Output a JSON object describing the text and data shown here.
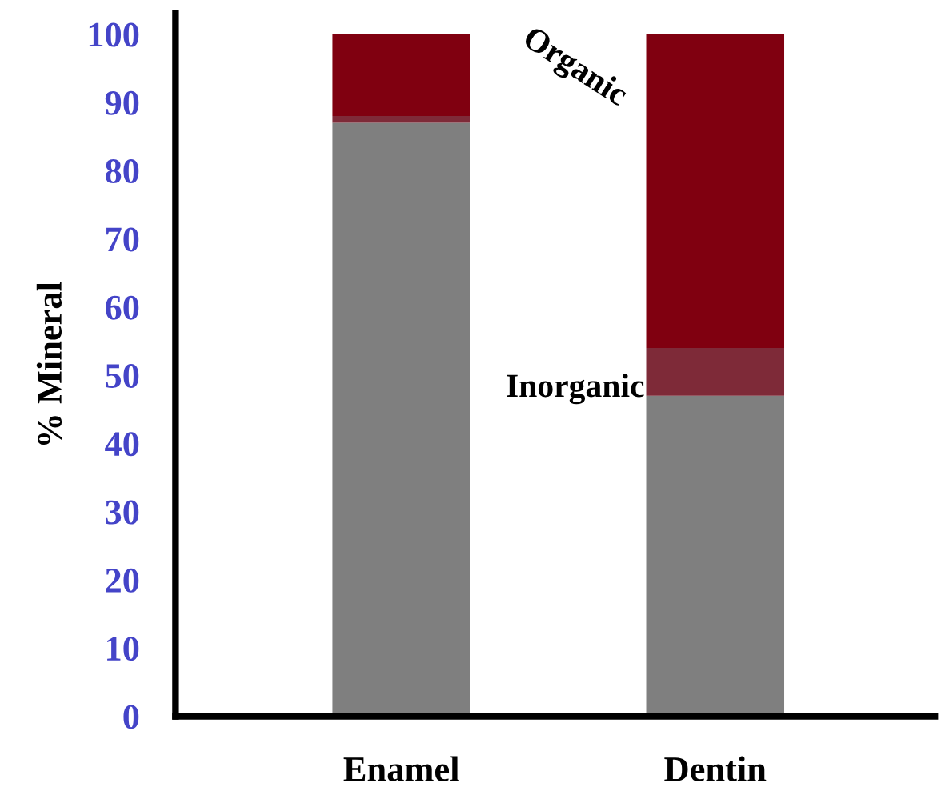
{
  "chart_data": {
    "type": "bar",
    "stacked": true,
    "ylabel": "% Mineral",
    "categories": [
      "Enamel",
      "Dentin"
    ],
    "ylim": [
      0,
      103
    ],
    "yticks": [
      0,
      10,
      20,
      30,
      40,
      50,
      60,
      70,
      80,
      90,
      100
    ],
    "grid": false,
    "legend": false,
    "series": [
      {
        "name": "Inorganic",
        "color": "#7f7f7f",
        "values": [
          87,
          47
        ]
      },
      {
        "color": "#7e2a38",
        "values": [
          1,
          7
        ]
      },
      {
        "name": "Organic",
        "color": "#800010",
        "values": [
          12,
          46
        ]
      }
    ]
  }
}
